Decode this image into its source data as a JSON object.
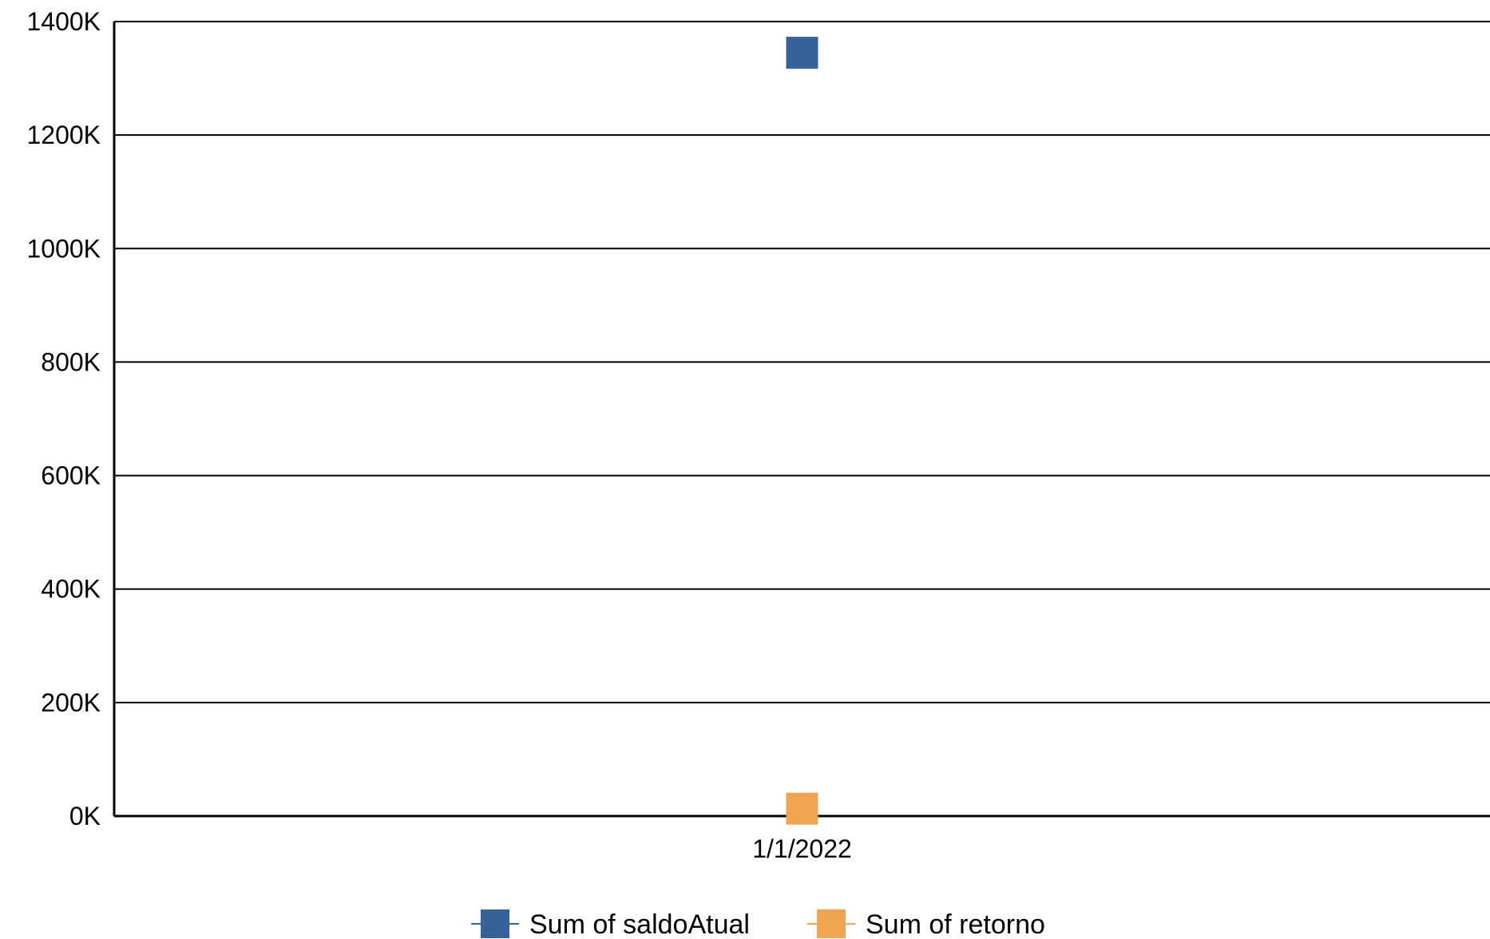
{
  "chart_data": {
    "type": "scatter",
    "title": "",
    "xlabel": "",
    "ylabel": "",
    "categories": [
      "1/1/2022"
    ],
    "series": [
      {
        "name": "Sum of saldoAtual",
        "values": [
          1345000
        ],
        "color": "#366199"
      },
      {
        "name": "Sum of retorno",
        "values": [
          13000
        ],
        "color": "#f0a452"
      }
    ],
    "ylim": [
      0,
      1400000
    ],
    "yticks": [
      0,
      200000,
      400000,
      600000,
      800000,
      1000000,
      1200000,
      1400000
    ],
    "ytick_labels": [
      "0K",
      "200K",
      "400K",
      "600K",
      "800K",
      "1000K",
      "1200K",
      "1400K"
    ],
    "grid": true,
    "legend_position": "bottom"
  }
}
